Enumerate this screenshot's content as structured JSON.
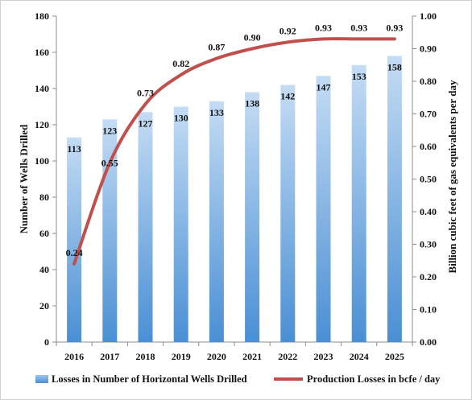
{
  "chart_data": {
    "type": "bar",
    "title": "",
    "categories": [
      "2016",
      "2017",
      "2018",
      "2019",
      "2020",
      "2021",
      "2022",
      "2023",
      "2024",
      "2025"
    ],
    "series": [
      {
        "name": "Losses in Number of Horizontal Wells Drilled",
        "chart_type": "bar",
        "axis": "left",
        "values": [
          113,
          123,
          127,
          130,
          133,
          138,
          142,
          147,
          153,
          158
        ],
        "labels": [
          "113",
          "123",
          "127",
          "130",
          "133",
          "138",
          "142",
          "147",
          "153",
          "158"
        ],
        "color": "#5b9bd5"
      },
      {
        "name": "Production Losses in bcfe / day",
        "chart_type": "line",
        "axis": "right",
        "values": [
          0.24,
          0.55,
          0.73,
          0.82,
          0.87,
          0.9,
          0.92,
          0.93,
          0.93,
          0.93
        ],
        "labels": [
          "0.24",
          "0.55",
          "0.73",
          "0.82",
          "0.87",
          "0.90",
          "0.92",
          "0.93",
          "0.93",
          "0.93"
        ],
        "color": "#c0504d"
      }
    ],
    "ylabel": "Number of Wells Drilled",
    "ylabel_right": "Billion cubic feet of gas equivalents per day",
    "ylim": [
      0,
      180
    ],
    "ylim_right": [
      0,
      1.0
    ],
    "yticks": [
      "0",
      "20",
      "40",
      "60",
      "80",
      "100",
      "120",
      "140",
      "160",
      "180"
    ],
    "yticks_right": [
      "0.00",
      "0.10",
      "0.20",
      "0.30",
      "0.40",
      "0.50",
      "0.60",
      "0.70",
      "0.80",
      "0.90",
      "1.00"
    ],
    "grid": false,
    "legend_position": "bottom"
  }
}
